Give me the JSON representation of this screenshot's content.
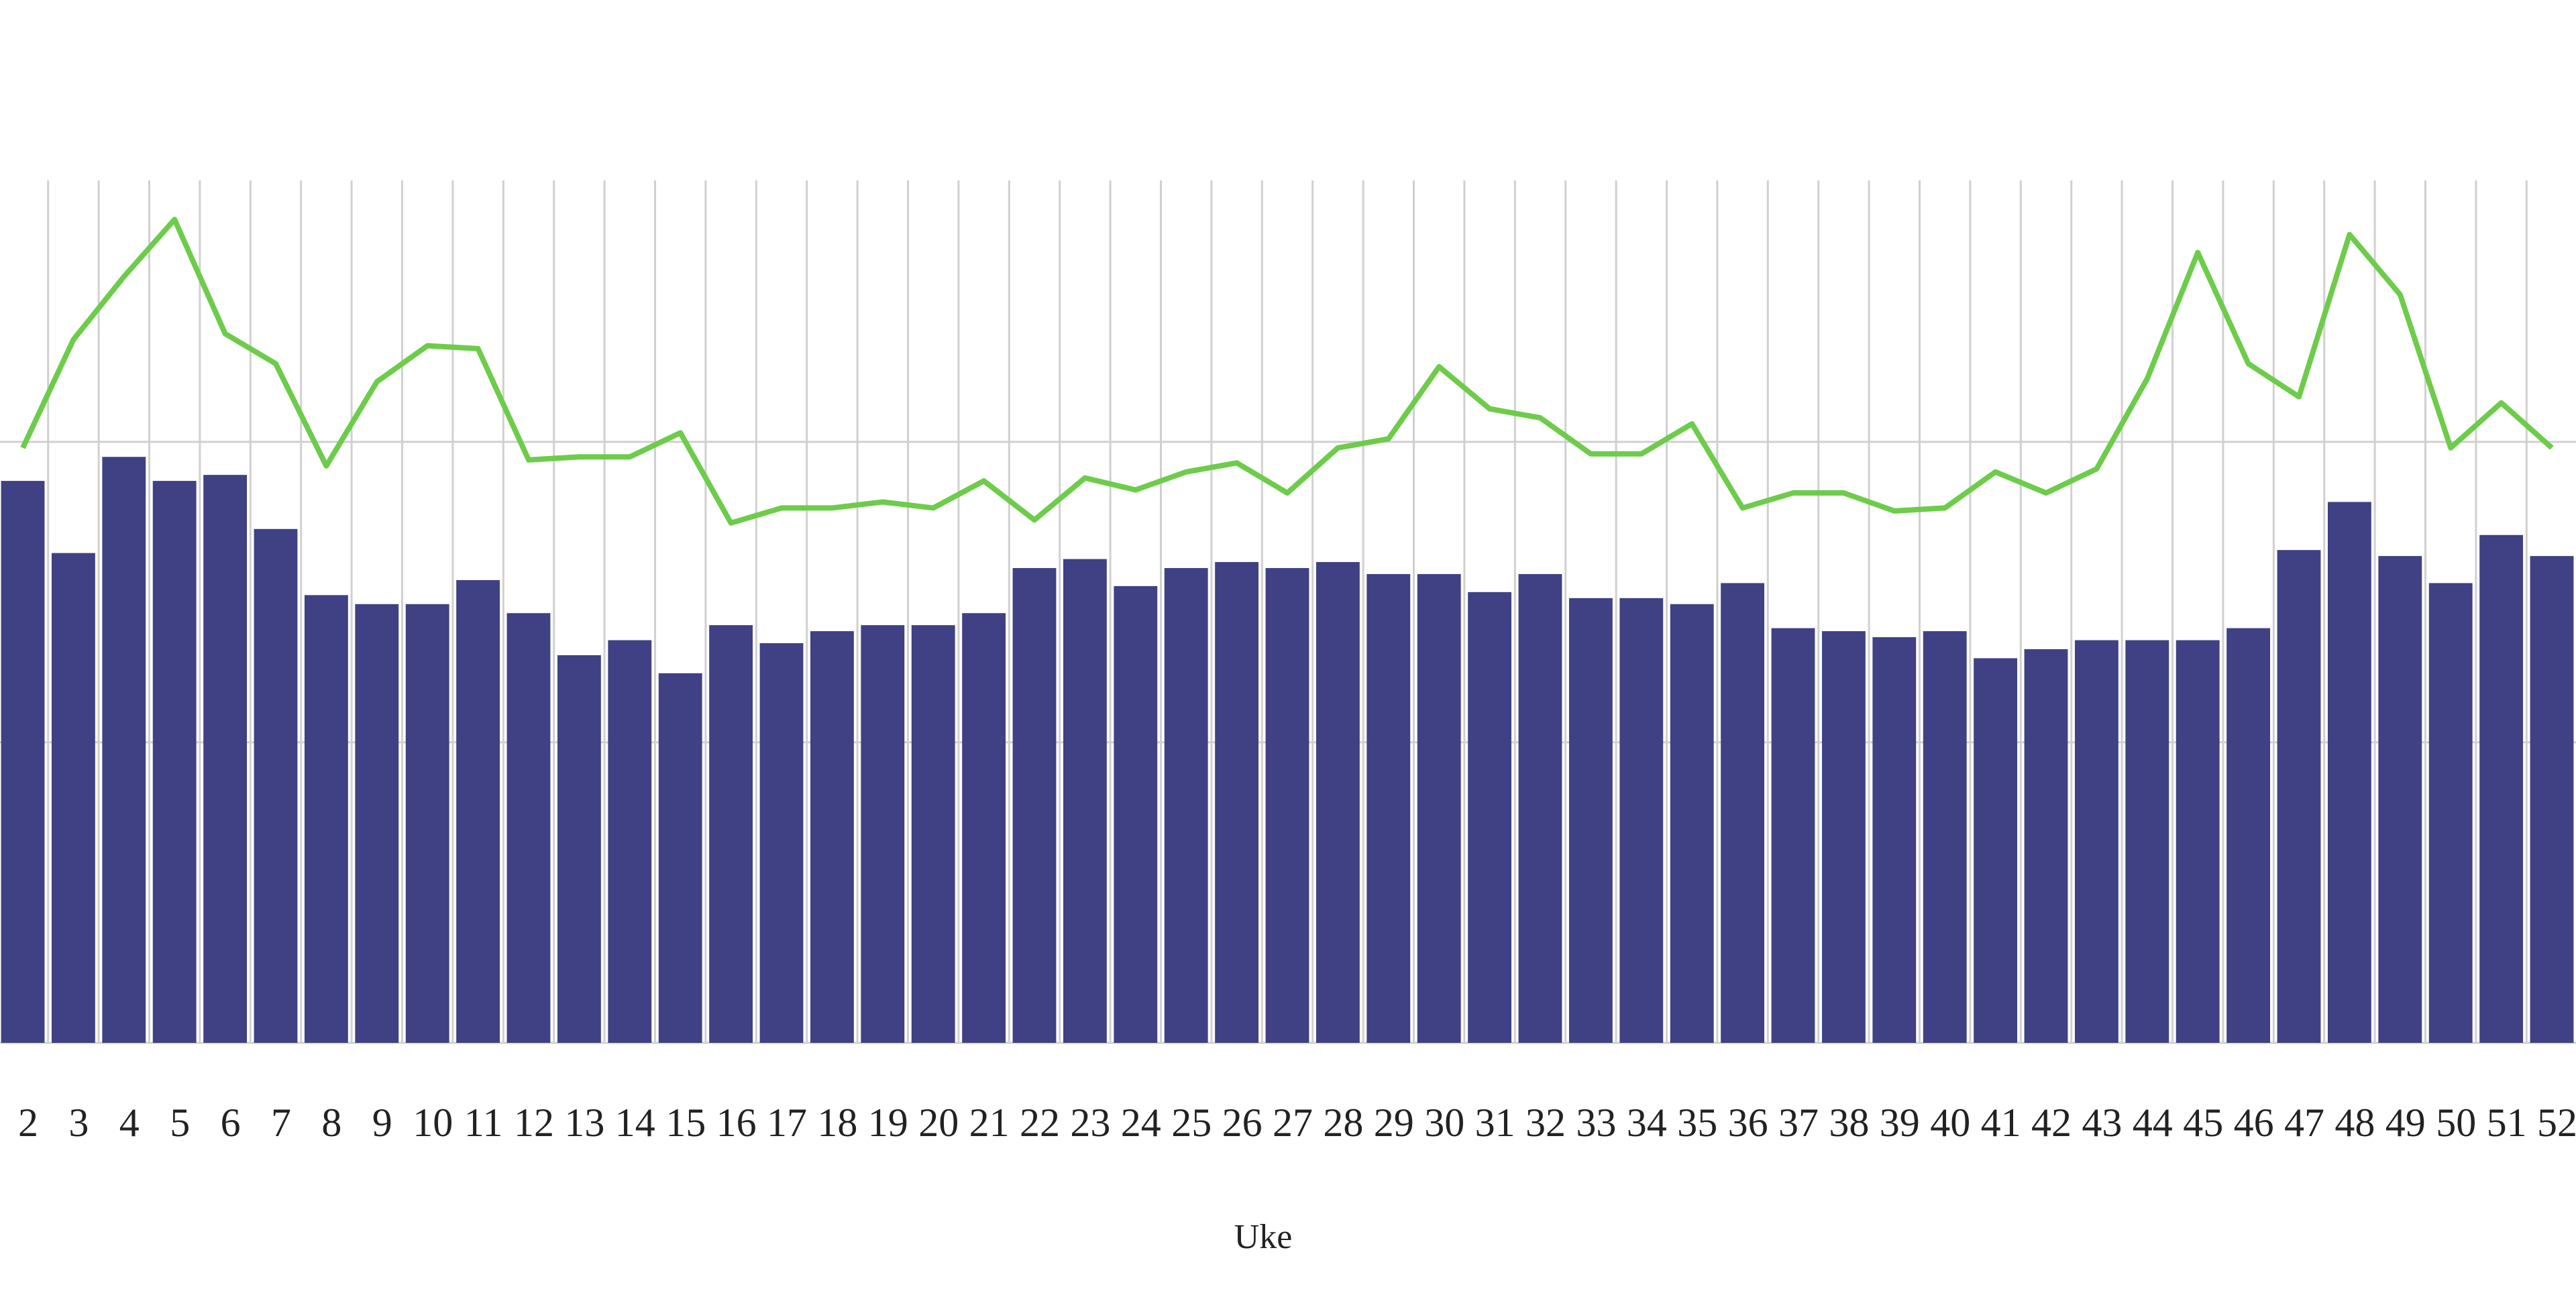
{
  "chart_data": {
    "type": "bar",
    "x_label": "Uke",
    "categories": [
      "2",
      "3",
      "4",
      "5",
      "6",
      "7",
      "8",
      "9",
      "10",
      "11",
      "12",
      "13",
      "14",
      "15",
      "16",
      "17",
      "18",
      "19",
      "20",
      "21",
      "22",
      "23",
      "24",
      "25",
      "26",
      "27",
      "28",
      "29",
      "30",
      "31",
      "32",
      "33",
      "34",
      "35",
      "36",
      "37",
      "38",
      "39",
      "40",
      "41",
      "42",
      "43",
      "44",
      "45",
      "46",
      "47",
      "48",
      "49",
      "50",
      "51",
      "52"
    ],
    "series": [
      {
        "type": "bar",
        "color": "#3f4184",
        "values": [
          187,
          163,
          195,
          187,
          189,
          171,
          149,
          146,
          146,
          154,
          143,
          129,
          134,
          123,
          139,
          133,
          137,
          139,
          139,
          143,
          158,
          161,
          152,
          158,
          160,
          158,
          160,
          156,
          156,
          150,
          156,
          148,
          148,
          146,
          153,
          138,
          137,
          135,
          137,
          128,
          131,
          134,
          134,
          134,
          138,
          164,
          180,
          162,
          153,
          169,
          162
        ]
      },
      {
        "type": "line",
        "color": "#6dcc4a",
        "values": [
          198,
          234,
          255,
          274,
          236,
          226,
          192,
          220,
          232,
          231,
          194,
          195,
          195,
          203,
          173,
          178,
          178,
          180,
          178,
          187,
          174,
          188,
          184,
          190,
          193,
          183,
          198,
          201,
          225,
          211,
          208,
          196,
          196,
          206,
          178,
          183,
          183,
          177,
          178,
          190,
          183,
          191,
          221,
          263,
          226,
          215,
          269,
          249,
          198,
          213,
          198
        ]
      }
    ],
    "ylim": [
      0,
      287
    ],
    "yticks": [
      0,
      100,
      200
    ],
    "grid": true
  }
}
